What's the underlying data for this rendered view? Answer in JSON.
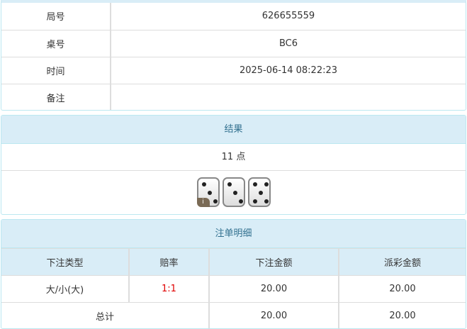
{
  "info": {
    "rows": [
      {
        "label": "局号",
        "value": "626655559"
      },
      {
        "label": "桌号",
        "value": "BC6"
      },
      {
        "label": "时间",
        "value": "2025-06-14 08:22:23"
      },
      {
        "label": "备注",
        "value": ""
      }
    ]
  },
  "result": {
    "title": "结果",
    "points": "11 点",
    "dice": [
      3,
      3,
      5
    ],
    "info_badge": "i"
  },
  "bets": {
    "title": "注单明细",
    "headers": [
      "下注类型",
      "赔率",
      "下注金额",
      "派彩金额"
    ],
    "rows": [
      {
        "type": "大/小(大)",
        "odds": "1:1",
        "amount": "20.00",
        "payout": "20.00"
      }
    ],
    "total": {
      "label": "总计",
      "amount": "20.00",
      "payout": "20.00"
    },
    "odds_color": "#e00000"
  }
}
